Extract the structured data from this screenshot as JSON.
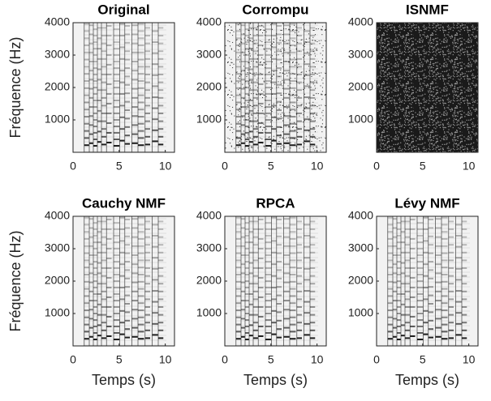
{
  "chart_data": [
    {
      "type": "spectrogram",
      "title": "Original",
      "ylabel": "Fréquence (Hz)",
      "xlim": [
        0,
        11
      ],
      "xticks": [
        0,
        5,
        10
      ],
      "ylim": [
        0,
        4000
      ],
      "yticks": [
        1000,
        2000,
        3000,
        4000
      ]
    },
    {
      "type": "spectrogram",
      "title": "Corrompu",
      "xlim": [
        0,
        11
      ],
      "xticks": [
        0,
        5,
        10
      ],
      "ylim": [
        0,
        4000
      ],
      "yticks": [
        1000,
        2000,
        3000,
        4000
      ]
    },
    {
      "type": "spectrogram",
      "title": "ISNMF",
      "xlim": [
        0,
        11
      ],
      "xticks": [
        0,
        5,
        10
      ],
      "ylim": [
        0,
        4000
      ],
      "yticks": [
        1000,
        2000,
        3000,
        4000
      ]
    },
    {
      "type": "spectrogram",
      "title": "Cauchy NMF",
      "ylabel": "Fréquence (Hz)",
      "xlabel": "Temps (s)",
      "xlim": [
        0,
        11
      ],
      "xticks": [
        0,
        5,
        10
      ],
      "ylim": [
        0,
        4000
      ],
      "yticks": [
        1000,
        2000,
        3000,
        4000
      ]
    },
    {
      "type": "spectrogram",
      "title": "RPCA",
      "xlabel": "Temps (s)",
      "xlim": [
        0,
        11
      ],
      "xticks": [
        0,
        5,
        10
      ],
      "ylim": [
        0,
        4000
      ],
      "yticks": [
        1000,
        2000,
        3000,
        4000
      ]
    },
    {
      "type": "spectrogram",
      "title": "Lévy NMF",
      "xlabel": "Temps (s)",
      "xlim": [
        0,
        11
      ],
      "xticks": [
        0,
        5,
        10
      ],
      "ylim": [
        0,
        4000
      ],
      "yticks": [
        1000,
        2000,
        3000,
        4000
      ]
    }
  ]
}
